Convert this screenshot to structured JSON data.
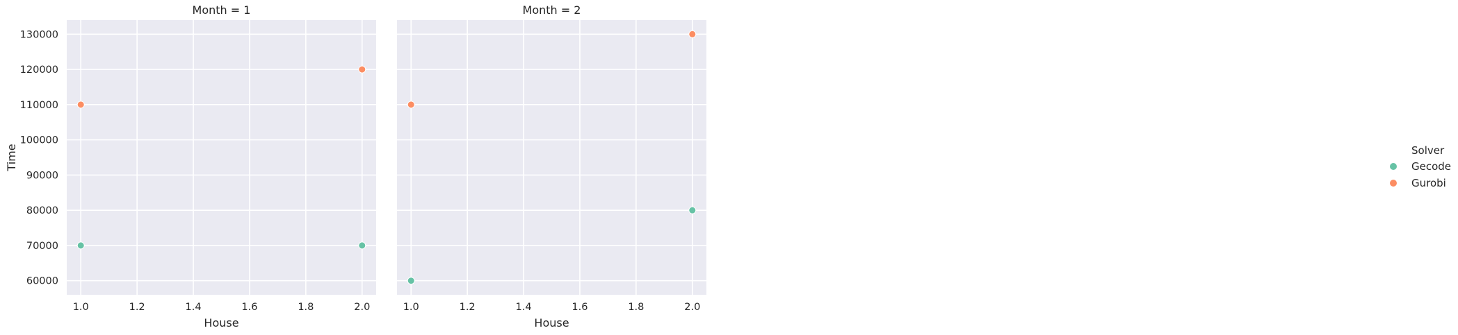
{
  "chart_data": [
    {
      "type": "scatter",
      "title": "Month = 1",
      "xlabel": "House",
      "ylabel": "Time",
      "xlim": [
        0.95,
        2.05
      ],
      "ylim": [
        56000,
        134000
      ],
      "xticks": [
        "1.0",
        "1.2",
        "1.4",
        "1.6",
        "1.8",
        "2.0"
      ],
      "xtick_values": [
        1.0,
        1.2,
        1.4,
        1.6,
        1.8,
        2.0
      ],
      "yticks": [
        "60000",
        "70000",
        "80000",
        "90000",
        "100000",
        "110000",
        "120000",
        "130000"
      ],
      "ytick_values": [
        60000,
        70000,
        80000,
        90000,
        100000,
        110000,
        120000,
        130000
      ],
      "grid": true,
      "series": [
        {
          "name": "Gecode",
          "color": "#66c2a5",
          "x": [
            1.0,
            2.0
          ],
          "y": [
            70000,
            70000
          ]
        },
        {
          "name": "Gurobi",
          "color": "#fc8d62",
          "x": [
            1.0,
            2.0
          ],
          "y": [
            110000,
            120000
          ]
        }
      ]
    },
    {
      "type": "scatter",
      "title": "Month = 2",
      "xlabel": "House",
      "ylabel": "",
      "xlim": [
        0.95,
        2.05
      ],
      "ylim": [
        56000,
        134000
      ],
      "xticks": [
        "1.0",
        "1.2",
        "1.4",
        "1.6",
        "1.8",
        "2.0"
      ],
      "xtick_values": [
        1.0,
        1.2,
        1.4,
        1.6,
        1.8,
        2.0
      ],
      "yticks": [],
      "ytick_values": [
        60000,
        70000,
        80000,
        90000,
        100000,
        110000,
        120000,
        130000
      ],
      "grid": true,
      "series": [
        {
          "name": "Gecode",
          "color": "#66c2a5",
          "x": [
            1.0,
            2.0
          ],
          "y": [
            60000,
            80000
          ]
        },
        {
          "name": "Gurobi",
          "color": "#fc8d62",
          "x": [
            1.0,
            2.0
          ],
          "y": [
            110000,
            130000
          ]
        }
      ]
    }
  ],
  "legend": {
    "title": "Solver",
    "placement": "right",
    "entries": [
      {
        "label": "Gecode",
        "color": "#66c2a5"
      },
      {
        "label": "Gurobi",
        "color": "#fc8d62"
      }
    ]
  }
}
